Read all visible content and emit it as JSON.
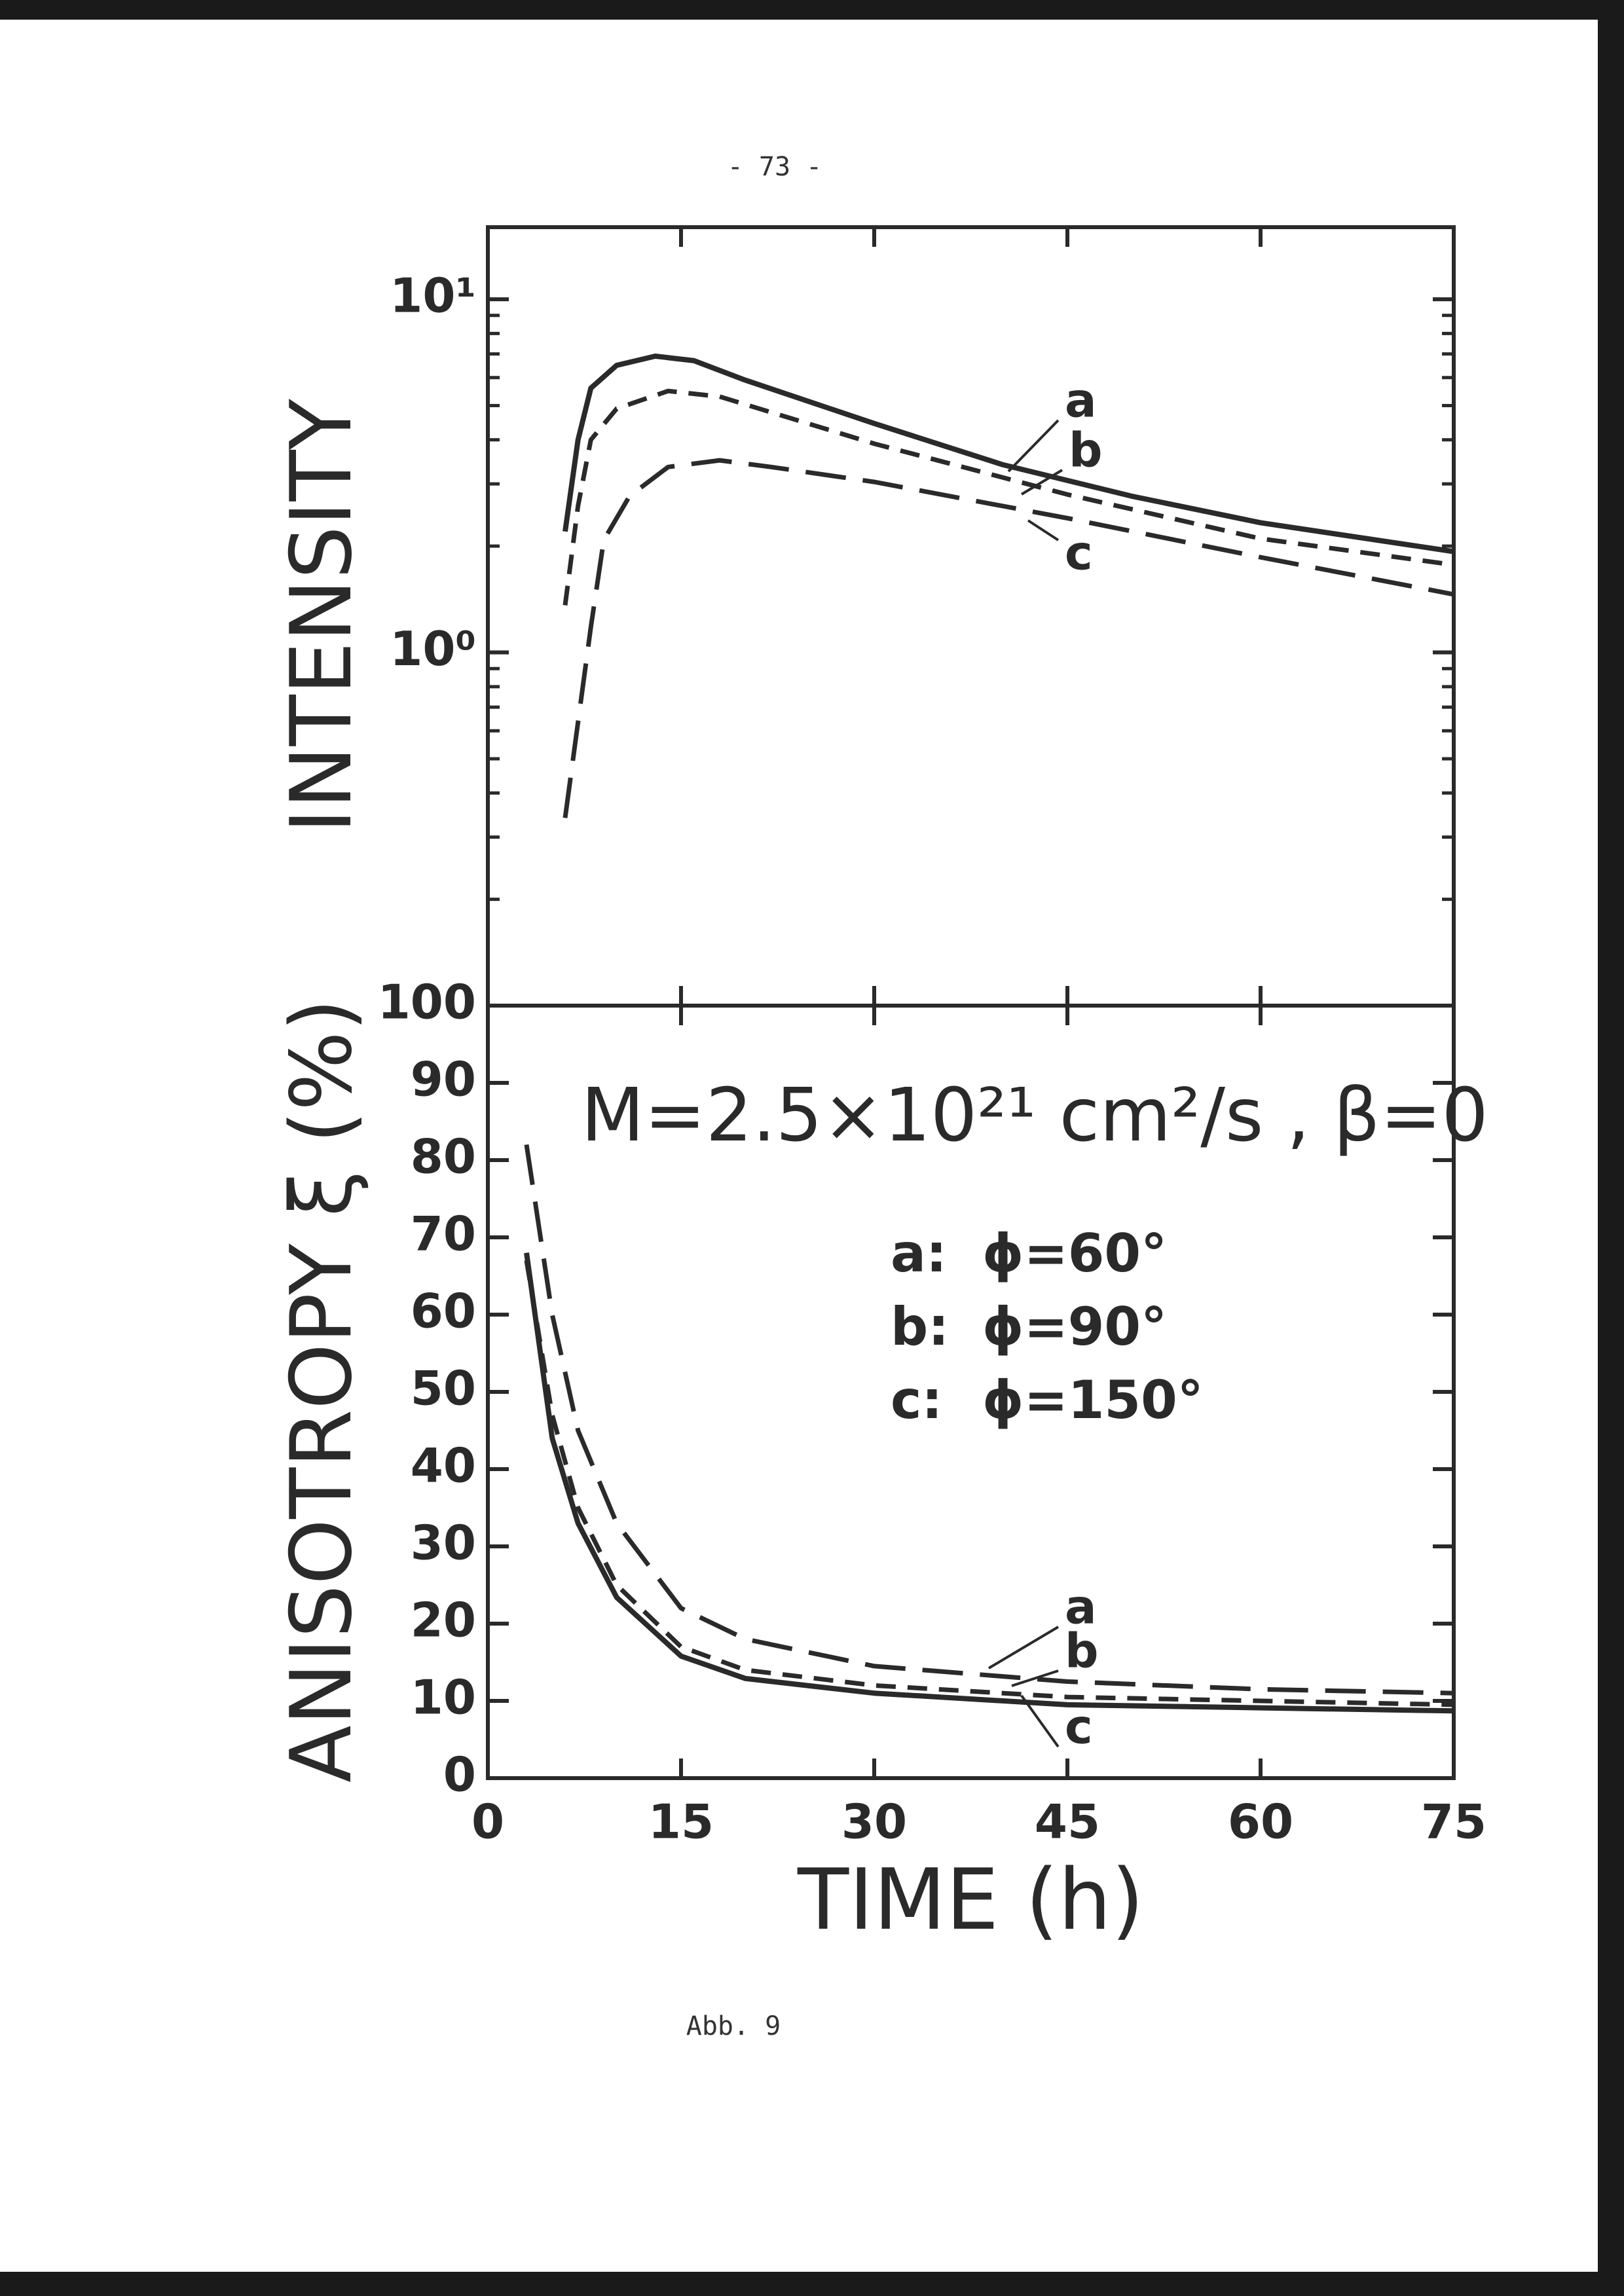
{
  "page_number": "- 73 -",
  "caption": "Abb. 9",
  "chart_data": [
    {
      "type": "line",
      "y_label": "INTENSITY",
      "ylog": true,
      "xlim": [
        0,
        75
      ],
      "xticks": [
        0,
        15,
        30,
        45,
        60,
        75
      ],
      "show_xtick_labels": false,
      "ylim": [
        0.1,
        16
      ],
      "yticks": [
        {
          "value": 1,
          "label": "10⁰"
        },
        {
          "value": 10,
          "label": "10¹"
        }
      ],
      "yminorticks": [
        0.2,
        0.3,
        0.4,
        0.5,
        0.6,
        0.7,
        0.8,
        0.9,
        2,
        3,
        4,
        5,
        6,
        7,
        8,
        9
      ],
      "color": "#2a2a2a",
      "series": [
        {
          "name": "a",
          "line_style": "solid",
          "x": [
            6,
            7,
            8,
            10,
            13,
            16,
            20,
            30,
            40,
            50,
            60,
            75
          ],
          "values": [
            2.2,
            4.0,
            5.6,
            6.5,
            6.9,
            6.7,
            5.9,
            4.45,
            3.4,
            2.77,
            2.33,
            1.93
          ]
        },
        {
          "name": "b",
          "line_style": "dashed",
          "x": [
            6,
            7,
            8,
            10,
            14,
            18,
            30,
            45,
            60,
            75
          ],
          "values": [
            1.36,
            2.6,
            4.0,
            4.9,
            5.5,
            5.3,
            3.9,
            2.8,
            2.1,
            1.77
          ]
        },
        {
          "name": "c",
          "line_style": "long-dashed",
          "x": [
            6,
            8,
            9,
            11,
            14,
            18,
            22,
            30,
            45,
            60,
            75
          ],
          "values": [
            0.34,
            1.18,
            2.08,
            2.77,
            3.35,
            3.5,
            3.35,
            3.04,
            2.4,
            1.86,
            1.46
          ]
        }
      ]
    },
    {
      "type": "line",
      "y_label": "ANISOTROPY ξ (%)",
      "x_label": "TIME (h)",
      "ylog": false,
      "xlim": [
        0,
        75
      ],
      "xticks": [
        0,
        15,
        30,
        45,
        60,
        75
      ],
      "show_xtick_labels": true,
      "ylim": [
        0,
        100
      ],
      "yticks": [
        0,
        10,
        20,
        30,
        40,
        50,
        60,
        70,
        80,
        90,
        100
      ],
      "color": "#2a2a2a",
      "annotation": "M=2.5×10²¹ cm²/s , β=0",
      "legend": [
        "a:",
        "ϕ=60°",
        "b:",
        "ϕ=90°",
        "c:",
        "ϕ=150°"
      ],
      "series": [
        {
          "name": "a",
          "line_style": "solid",
          "x": [
            3,
            5,
            7,
            10,
            15,
            20,
            30,
            45,
            60,
            75
          ],
          "values": [
            68,
            44,
            33,
            23.4,
            15.8,
            12.9,
            11,
            9.5,
            9.1,
            8.7
          ]
        },
        {
          "name": "b",
          "line_style": "dashed",
          "x": [
            3,
            5,
            7,
            10,
            15,
            20,
            30,
            45,
            60,
            75
          ],
          "values": [
            67,
            47,
            35,
            25,
            17,
            14,
            12,
            10.5,
            10,
            9.5
          ]
        },
        {
          "name": "c",
          "line_style": "long-dashed",
          "x": [
            3,
            5,
            7,
            10,
            15,
            20,
            30,
            45,
            60,
            75
          ],
          "values": [
            82,
            60,
            45,
            33,
            22,
            18,
            14.5,
            12.5,
            11.5,
            11
          ]
        }
      ]
    }
  ]
}
